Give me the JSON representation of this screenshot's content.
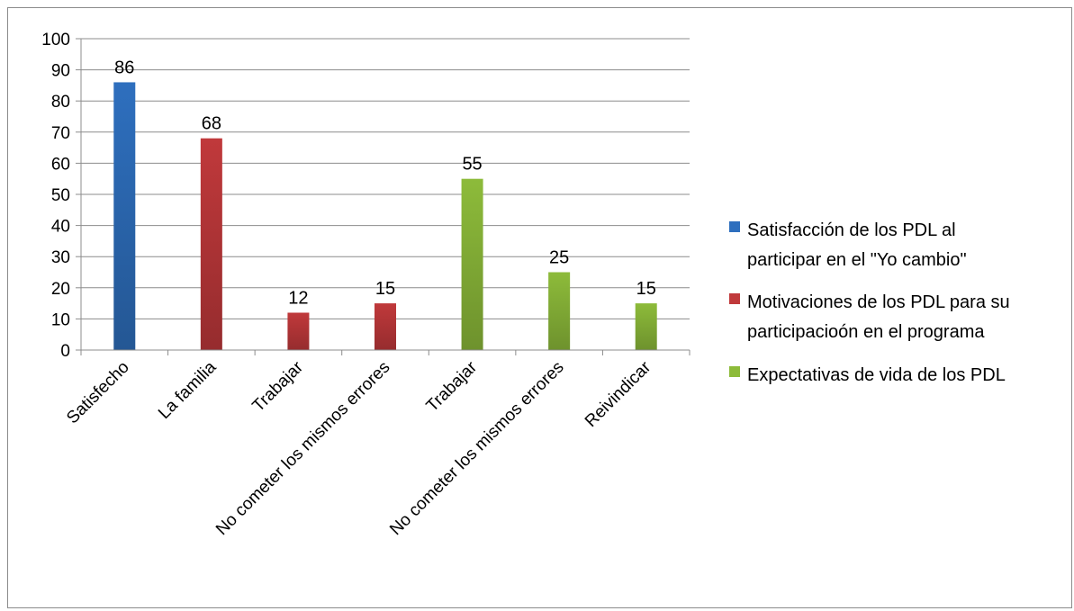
{
  "chart_data": {
    "type": "bar",
    "categories": [
      "Satisfecho",
      "La familia",
      "Trabajar",
      "No cometer los mismos errores",
      "Trabajar",
      "No cometer los mismos errores",
      "Reivindicar"
    ],
    "series": [
      {
        "name": "Satisfacción de los PDL al participar en el \"Yo cambio\"",
        "color": "#2E6FBE",
        "values": [
          86,
          null,
          null,
          null,
          null,
          null,
          null
        ]
      },
      {
        "name": "Motivaciones de los PDL para su participacioón en el programa",
        "color": "#C0393B",
        "values": [
          null,
          68,
          12,
          15,
          null,
          null,
          null
        ]
      },
      {
        "name": "Expectativas de vida de los PDL",
        "color": "#8DBB3A",
        "values": [
          null,
          null,
          null,
          null,
          55,
          25,
          15
        ]
      }
    ],
    "ylim": [
      0,
      100
    ],
    "yticks": [
      0,
      10,
      20,
      30,
      40,
      50,
      60,
      70,
      80,
      90,
      100
    ],
    "grid": true,
    "legend_position": "right",
    "data_labels": true
  },
  "legend": {
    "items": [
      {
        "lines": [
          "Satisfacción de los PDL al",
          "participar en el \"Yo cambio\""
        ]
      },
      {
        "lines": [
          "Motivaciones de los PDL para su",
          "participacioón en el programa"
        ]
      },
      {
        "lines": [
          "Expectativas de vida de los PDL"
        ]
      }
    ]
  }
}
